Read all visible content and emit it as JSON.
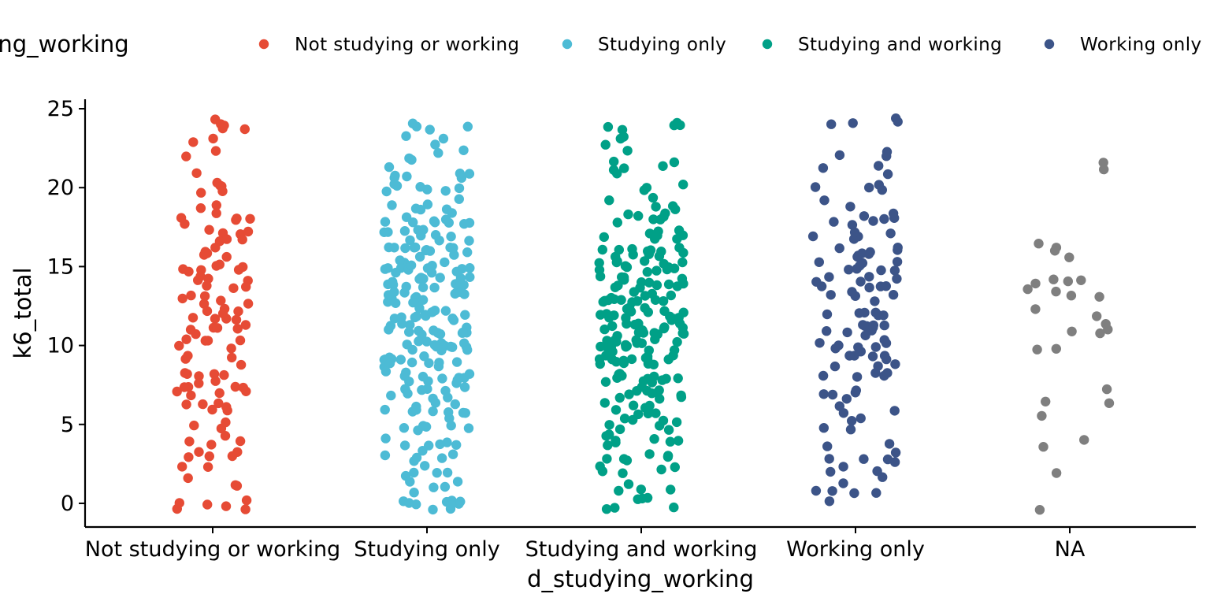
{
  "chart_data": {
    "type": "scatter",
    "subtype": "jitter strip plot",
    "xlabel": "d_studying_working",
    "ylabel": "k6_total",
    "ylim": [
      -1.5,
      25.6
    ],
    "yticks": [
      0,
      5,
      10,
      15,
      20,
      25
    ],
    "grid": false,
    "legend": {
      "title": "d_studying_working",
      "position": "top",
      "entries": [
        "Not studying or working",
        "Studying only",
        "Studying and working",
        "Working only"
      ]
    },
    "categories": [
      "Not studying or working",
      "Studying only",
      "Studying and working",
      "Working only",
      "NA"
    ],
    "series": [
      {
        "name": "Not studying or working",
        "color": "#E64B35",
        "category": "Not studying or working",
        "jitter": 0.175,
        "values": [
          24,
          24,
          24,
          23,
          24,
          22,
          24,
          23,
          22,
          21,
          20,
          20,
          20,
          20,
          20,
          19,
          19,
          18,
          18,
          18,
          18,
          18,
          18,
          17,
          17,
          17,
          17,
          17,
          17,
          17,
          16,
          16,
          16,
          16,
          16,
          15,
          15,
          15,
          15,
          15,
          15,
          15,
          14,
          14,
          14,
          14,
          14,
          14,
          14,
          13,
          13,
          13,
          13,
          13,
          13,
          12,
          12,
          12,
          12,
          12,
          12,
          12,
          12,
          11,
          11,
          11,
          11,
          11,
          11,
          10,
          10,
          10,
          10,
          10,
          10,
          9,
          9,
          9,
          9,
          8,
          8,
          8,
          8,
          8,
          8,
          8,
          7,
          7,
          7,
          7,
          7,
          7,
          7,
          7,
          6,
          6,
          6,
          6,
          6,
          6,
          5,
          5,
          5,
          4,
          4,
          4,
          4,
          3,
          3,
          3,
          3,
          3,
          2,
          2,
          2,
          1,
          1,
          0,
          0,
          0,
          0,
          0,
          0
        ]
      },
      {
        "name": "Studying only",
        "color": "#4DBBD5",
        "category": "Studying only",
        "jitter": 0.2,
        "values": [
          24,
          24,
          24,
          24,
          23,
          23,
          23,
          22,
          22,
          22,
          22,
          21,
          21,
          21,
          21,
          21,
          21,
          21,
          20,
          20,
          20,
          20,
          20,
          20,
          20,
          19,
          19,
          19,
          19,
          19,
          19,
          18,
          18,
          18,
          18,
          18,
          18,
          18,
          18,
          18,
          18,
          17,
          17,
          17,
          17,
          17,
          17,
          17,
          17,
          17,
          17,
          17,
          16,
          16,
          16,
          16,
          16,
          16,
          16,
          16,
          16,
          16,
          16,
          16,
          16,
          15,
          15,
          15,
          15,
          15,
          15,
          15,
          15,
          15,
          15,
          15,
          15,
          15,
          15,
          15,
          14,
          14,
          14,
          14,
          14,
          14,
          14,
          14,
          14,
          14,
          14,
          14,
          14,
          14,
          14,
          13,
          13,
          13,
          13,
          13,
          13,
          13,
          13,
          13,
          13,
          13,
          13,
          13,
          13,
          13,
          13,
          12,
          12,
          12,
          12,
          12,
          12,
          12,
          12,
          12,
          12,
          12,
          12,
          12,
          12,
          11,
          11,
          11,
          11,
          11,
          11,
          11,
          11,
          11,
          11,
          11,
          11,
          11,
          11,
          10,
          10,
          10,
          10,
          10,
          10,
          10,
          10,
          10,
          10,
          10,
          10,
          10,
          10,
          9,
          9,
          9,
          9,
          9,
          9,
          9,
          9,
          9,
          9,
          9,
          9,
          9,
          8,
          8,
          8,
          8,
          8,
          8,
          8,
          8,
          8,
          8,
          8,
          8,
          7,
          7,
          7,
          7,
          7,
          7,
          7,
          7,
          7,
          7,
          6,
          6,
          6,
          6,
          6,
          6,
          6,
          6,
          6,
          6,
          6,
          5,
          5,
          5,
          5,
          5,
          5,
          5,
          4,
          4,
          4,
          4,
          4,
          4,
          3,
          3,
          3,
          3,
          3,
          3,
          2,
          2,
          2,
          2,
          2,
          1,
          1,
          1,
          1,
          1,
          0,
          0,
          0,
          0,
          0,
          0,
          0,
          0,
          0,
          0
        ]
      },
      {
        "name": "Studying and working",
        "color": "#00A087",
        "category": "Studying and working",
        "jitter": 0.2,
        "values": [
          24,
          24,
          24,
          24,
          24,
          23,
          23,
          23,
          22,
          22,
          22,
          21,
          21,
          21,
          21,
          20,
          20,
          20,
          19,
          19,
          19,
          19,
          19,
          18,
          18,
          18,
          18,
          18,
          18,
          18,
          17,
          17,
          17,
          17,
          17,
          17,
          17,
          17,
          17,
          16,
          16,
          16,
          16,
          16,
          16,
          16,
          16,
          16,
          16,
          16,
          16,
          15,
          15,
          15,
          15,
          15,
          15,
          15,
          15,
          15,
          15,
          15,
          15,
          15,
          15,
          14,
          14,
          14,
          14,
          14,
          14,
          14,
          14,
          14,
          14,
          14,
          14,
          14,
          14,
          13,
          13,
          13,
          13,
          13,
          13,
          13,
          13,
          13,
          13,
          13,
          13,
          13,
          13,
          12,
          12,
          12,
          12,
          12,
          12,
          12,
          12,
          12,
          12,
          12,
          12,
          12,
          12,
          12,
          12,
          11,
          11,
          11,
          11,
          11,
          11,
          11,
          11,
          11,
          11,
          11,
          11,
          11,
          11,
          11,
          11,
          11,
          11,
          10,
          10,
          10,
          10,
          10,
          10,
          10,
          10,
          10,
          10,
          10,
          10,
          10,
          10,
          10,
          10,
          10,
          10,
          9,
          9,
          9,
          9,
          9,
          9,
          9,
          9,
          9,
          9,
          9,
          9,
          9,
          9,
          9,
          8,
          8,
          8,
          8,
          8,
          8,
          8,
          8,
          8,
          8,
          8,
          8,
          7,
          7,
          7,
          7,
          7,
          7,
          7,
          7,
          7,
          7,
          7,
          6,
          6,
          6,
          6,
          6,
          6,
          6,
          6,
          6,
          6,
          5,
          5,
          5,
          5,
          5,
          5,
          5,
          5,
          4,
          4,
          4,
          4,
          4,
          4,
          4,
          4,
          3,
          3,
          3,
          3,
          3,
          3,
          2,
          2,
          2,
          2,
          2,
          1,
          1,
          1,
          1,
          0,
          0,
          0,
          0,
          0,
          0
        ]
      },
      {
        "name": "Working only",
        "color": "#3C5488",
        "category": "Working only",
        "jitter": 0.2,
        "values": [
          24,
          24,
          24,
          24,
          22,
          22,
          22,
          21,
          21,
          21,
          20,
          20,
          20,
          20,
          19,
          19,
          18,
          18,
          18,
          18,
          18,
          18,
          18,
          17,
          17,
          17,
          17,
          17,
          16,
          16,
          16,
          16,
          16,
          16,
          16,
          16,
          15,
          15,
          15,
          15,
          15,
          15,
          15,
          15,
          14,
          14,
          14,
          14,
          14,
          14,
          14,
          14,
          14,
          13,
          13,
          13,
          13,
          13,
          12,
          12,
          12,
          12,
          12,
          12,
          11,
          11,
          11,
          11,
          11,
          11,
          11,
          11,
          11,
          11,
          10,
          10,
          10,
          10,
          10,
          10,
          10,
          10,
          9,
          9,
          9,
          9,
          9,
          9,
          9,
          9,
          8,
          8,
          8,
          8,
          8,
          7,
          7,
          7,
          7,
          7,
          6,
          6,
          6,
          5,
          5,
          5,
          5,
          4,
          4,
          3,
          3,
          3,
          3,
          3,
          2,
          2,
          2,
          2,
          1,
          1,
          1,
          1,
          1,
          0
        ]
      },
      {
        "name": "",
        "color": "#7F7F7F",
        "category": "NA",
        "jitter": 0.2,
        "values": [
          21.2,
          21.2,
          16.8,
          16.4,
          16.3,
          15.3,
          14.4,
          14.2,
          14.2,
          14.0,
          13.9,
          13.3,
          13.2,
          12.7,
          12.3,
          12.1,
          11.3,
          11.2,
          11.1,
          10.7,
          10.0,
          9.4,
          6.9,
          6.7,
          6.4,
          5.8,
          4.2,
          3.8,
          1.7,
          -0.3
        ]
      }
    ]
  }
}
